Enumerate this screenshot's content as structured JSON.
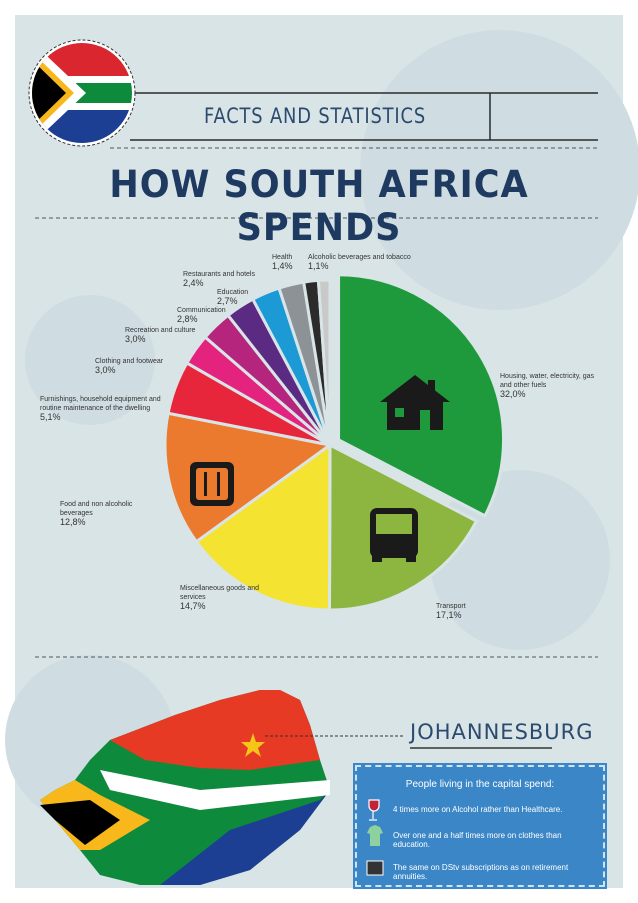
{
  "header": {
    "subtitle": "FACTS AND STATISTICS",
    "title": "HOW SOUTH AFRICA SPENDS"
  },
  "chart_data": {
    "type": "pie",
    "categories": [
      "Housing, water, electricity, gas and other fuels",
      "Transport",
      "Miscellaneous goods and services",
      "Food and non alcoholic beverages",
      "Furnishings, household equipment and routine maintenance of the dwelling",
      "Clothing and footwear",
      "Recreation and culture",
      "Communication",
      "Education",
      "Restaurants and hotels",
      "Health",
      "Alcoholic beverages and tobacco"
    ],
    "values": [
      32.0,
      17.1,
      14.7,
      12.8,
      5.1,
      3.0,
      3.0,
      2.8,
      2.7,
      2.4,
      1.4,
      1.1
    ],
    "value_labels": [
      "32,0%",
      "17,1%",
      "14,7%",
      "12,8%",
      "5,1%",
      "3,0%",
      "3,0%",
      "2,8%",
      "2,7%",
      "2,4%",
      "1,4%",
      "1,1%"
    ],
    "colors": [
      "#1e9a3c",
      "#8db641",
      "#f5e332",
      "#ec7a2e",
      "#e8263b",
      "#e3237d",
      "#b5257d",
      "#5b2a83",
      "#1b9ad6",
      "#8d9297",
      "#2b2b2b",
      "#c9c9c9"
    ]
  },
  "city": {
    "name": "JOHANNESBURG",
    "box_title": "People living in the capital spend:",
    "items": [
      "4 times more on Alcohol rather than Healthcare.",
      "Over one and a half times more on clothes than education.",
      "The same on DStv subscriptions as on retirement annuities."
    ]
  }
}
